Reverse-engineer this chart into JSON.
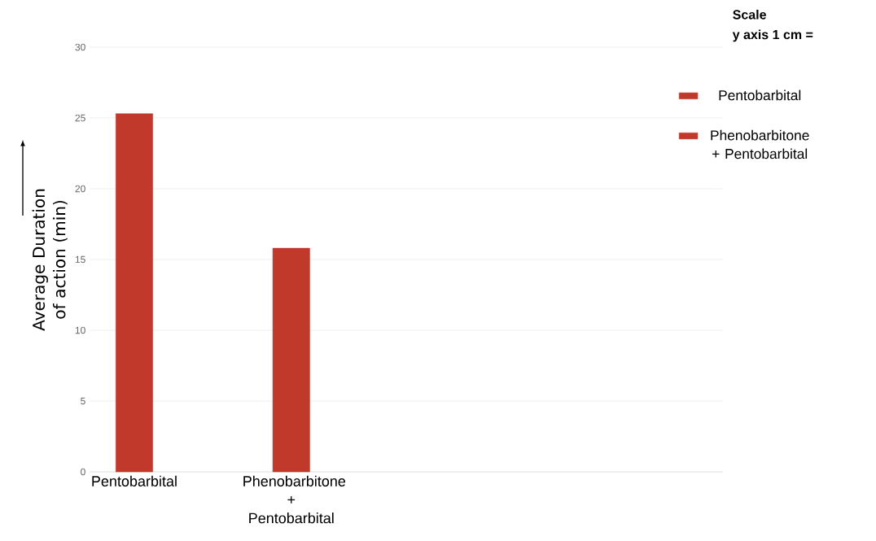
{
  "chart_data": {
    "type": "bar",
    "categories": [
      "Pentobarbital",
      "Phenobarbitone + Pentobarbital"
    ],
    "series": [
      {
        "name": "Pentobarbital",
        "color": "#c0392b",
        "values": [
          25.3,
          null
        ]
      },
      {
        "name": "Phenobarbitone + Pentobarbital",
        "color": "#c0392b",
        "values": [
          null,
          15.8
        ]
      }
    ],
    "ylabel": "Average Duration  of action (min)",
    "ylim": [
      0,
      30
    ],
    "yticks": [
      0,
      5,
      10,
      15,
      20,
      25,
      30
    ],
    "grid": "y",
    "legend": "top right",
    "annotations": [
      "Scale",
      "y axis 1 cm ="
    ]
  }
}
